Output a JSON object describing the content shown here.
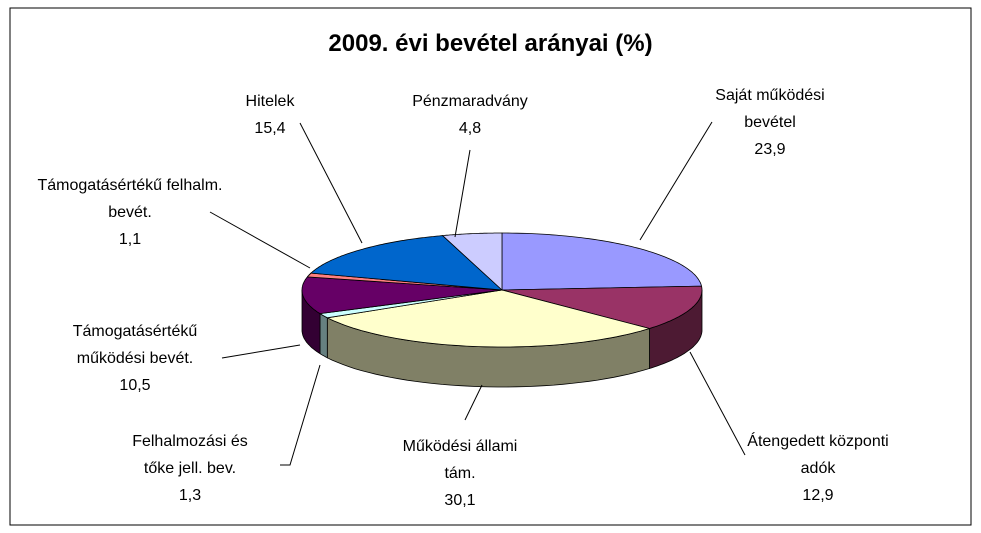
{
  "chart_data": {
    "type": "pie",
    "title": "2009. évi bevétel arányai (%)",
    "categories": [
      "Saját működési bevétel",
      "Átengedett központi adók",
      "Működési állami tám.",
      "Felhalmozási és tőke jell. bev.",
      "Támogatásértékű működési bevét.",
      "Támogatásértékű felhalm. bevét.",
      "Hitelek",
      "Pénzmaradvány"
    ],
    "values": [
      23.9,
      12.9,
      30.1,
      1.3,
      10.5,
      1.1,
      15.4,
      4.8
    ],
    "value_labels": [
      "23,9",
      "12,9",
      "30,1",
      "1,3",
      "10,5",
      "1,1",
      "15,4",
      "4,8"
    ],
    "colors": [
      "#9999ff",
      "#993366",
      "#ffffcc",
      "#ccffff",
      "#660066",
      "#ff8080",
      "#0066cc",
      "#ccccff"
    ]
  }
}
